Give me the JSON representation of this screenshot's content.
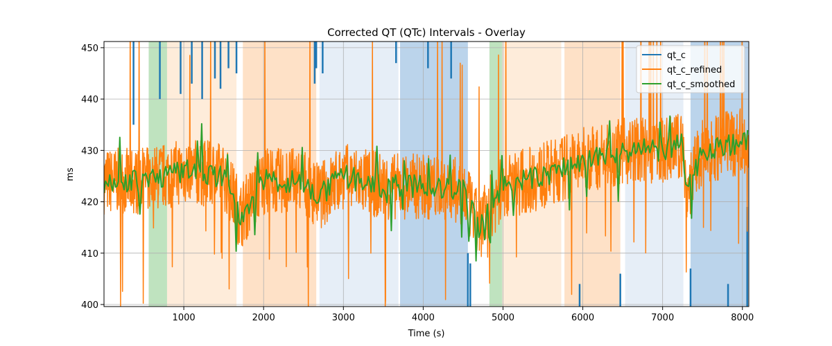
{
  "chart_data": {
    "type": "line",
    "title": "Corrected QT (QTc) Intervals - Overlay",
    "xlabel": "Time (s)",
    "ylabel": "ms",
    "xlim": [
      0,
      8080
    ],
    "ylim": [
      399.6,
      451.2
    ],
    "x_ticks": [
      1000,
      2000,
      3000,
      4000,
      5000,
      6000,
      7000,
      8000
    ],
    "y_ticks": [
      400,
      410,
      420,
      430,
      440,
      450
    ],
    "grid": true,
    "legend_position": "upper-right",
    "colors": {
      "qt_c": "#1f77b4",
      "qt_c_refined": "#ff7f0e",
      "qt_c_smoothed": "#2ca02c",
      "band_light_blue": "#c8d9ed",
      "band_blue": "#3d85c6",
      "band_peach": "#fdd9b5",
      "band_orange": "#fca85e",
      "band_green": "#5fba5f"
    },
    "background_bands": [
      {
        "x0": 560,
        "x1": 790,
        "color": "band_green",
        "alpha": 0.4
      },
      {
        "x0": 790,
        "x1": 1660,
        "color": "band_peach",
        "alpha": 0.5
      },
      {
        "x0": 1740,
        "x1": 2660,
        "color": "band_orange",
        "alpha": 0.35
      },
      {
        "x0": 2700,
        "x1": 3690,
        "color": "band_light_blue",
        "alpha": 0.45
      },
      {
        "x0": 3710,
        "x1": 4560,
        "color": "band_blue",
        "alpha": 0.35
      },
      {
        "x0": 4830,
        "x1": 4990,
        "color": "band_green",
        "alpha": 0.4
      },
      {
        "x0": 4990,
        "x1": 5730,
        "color": "band_peach",
        "alpha": 0.5
      },
      {
        "x0": 5770,
        "x1": 6470,
        "color": "band_orange",
        "alpha": 0.35
      },
      {
        "x0": 6530,
        "x1": 7260,
        "color": "band_light_blue",
        "alpha": 0.45
      },
      {
        "x0": 7350,
        "x1": 8080,
        "color": "band_blue",
        "alpha": 0.35
      }
    ],
    "series": [
      {
        "name": "qt_c",
        "color": "qt_c",
        "spikes": [
          {
            "x": 370,
            "y0": 451.2,
            "y1": 435
          },
          {
            "x": 700,
            "y0": 451.2,
            "y1": 440
          },
          {
            "x": 960,
            "y0": 451.2,
            "y1": 441
          },
          {
            "x": 1100,
            "y0": 451.2,
            "y1": 443
          },
          {
            "x": 1230,
            "y0": 451.2,
            "y1": 440
          },
          {
            "x": 1390,
            "y0": 451.2,
            "y1": 444
          },
          {
            "x": 1460,
            "y0": 451.2,
            "y1": 442
          },
          {
            "x": 1560,
            "y0": 451.2,
            "y1": 446
          },
          {
            "x": 1660,
            "y0": 451.2,
            "y1": 445
          },
          {
            "x": 2640,
            "y0": 451.2,
            "y1": 443
          },
          {
            "x": 2660,
            "y0": 451.2,
            "y1": 446
          },
          {
            "x": 2740,
            "y0": 451.2,
            "y1": 445
          },
          {
            "x": 3660,
            "y0": 451.2,
            "y1": 447
          },
          {
            "x": 4060,
            "y0": 451.2,
            "y1": 446
          },
          {
            "x": 4350,
            "y0": 451.2,
            "y1": 444
          },
          {
            "x": 4560,
            "y0": 399.6,
            "y1": 410
          },
          {
            "x": 4590,
            "y0": 399.6,
            "y1": 408
          },
          {
            "x": 5960,
            "y0": 399.6,
            "y1": 404
          },
          {
            "x": 6470,
            "y0": 399.6,
            "y1": 406
          },
          {
            "x": 7350,
            "y0": 399.6,
            "y1": 407
          },
          {
            "x": 7820,
            "y0": 399.6,
            "y1": 404
          },
          {
            "x": 8060,
            "y0": 399.6,
            "y1": 419
          }
        ]
      },
      {
        "name": "qt_c_refined",
        "color": "qt_c_refined",
        "trend_x": [
          0,
          500,
          1000,
          1500,
          1650,
          1700,
          2000,
          2500,
          2700,
          3000,
          3500,
          4000,
          4500,
          4700,
          5000,
          5500,
          6000,
          6500,
          7000,
          7250,
          7300,
          7500,
          8080
        ],
        "trend_y": [
          424,
          424,
          426,
          425,
          420,
          417,
          424,
          424,
          421,
          425,
          423,
          423,
          422,
          415,
          423,
          425,
          428,
          430,
          430,
          431,
          422,
          430,
          432
        ],
        "noise_amplitude": 6.5,
        "sample_step": 4
      },
      {
        "name": "qt_c_smoothed",
        "color": "qt_c_smoothed",
        "trend_x": [
          0,
          500,
          1000,
          1500,
          1650,
          1700,
          2000,
          2500,
          2700,
          3000,
          3500,
          4000,
          4500,
          4700,
          5000,
          5500,
          6000,
          6500,
          7000,
          7250,
          7300,
          7500,
          8080
        ],
        "trend_y": [
          424,
          424,
          426,
          425,
          420,
          417,
          424,
          424,
          421,
          425,
          423,
          423,
          422,
          415,
          423,
          425,
          428,
          430,
          430,
          431,
          422,
          430,
          432
        ],
        "noise_amplitude": 2.3,
        "sample_step": 18
      }
    ]
  }
}
